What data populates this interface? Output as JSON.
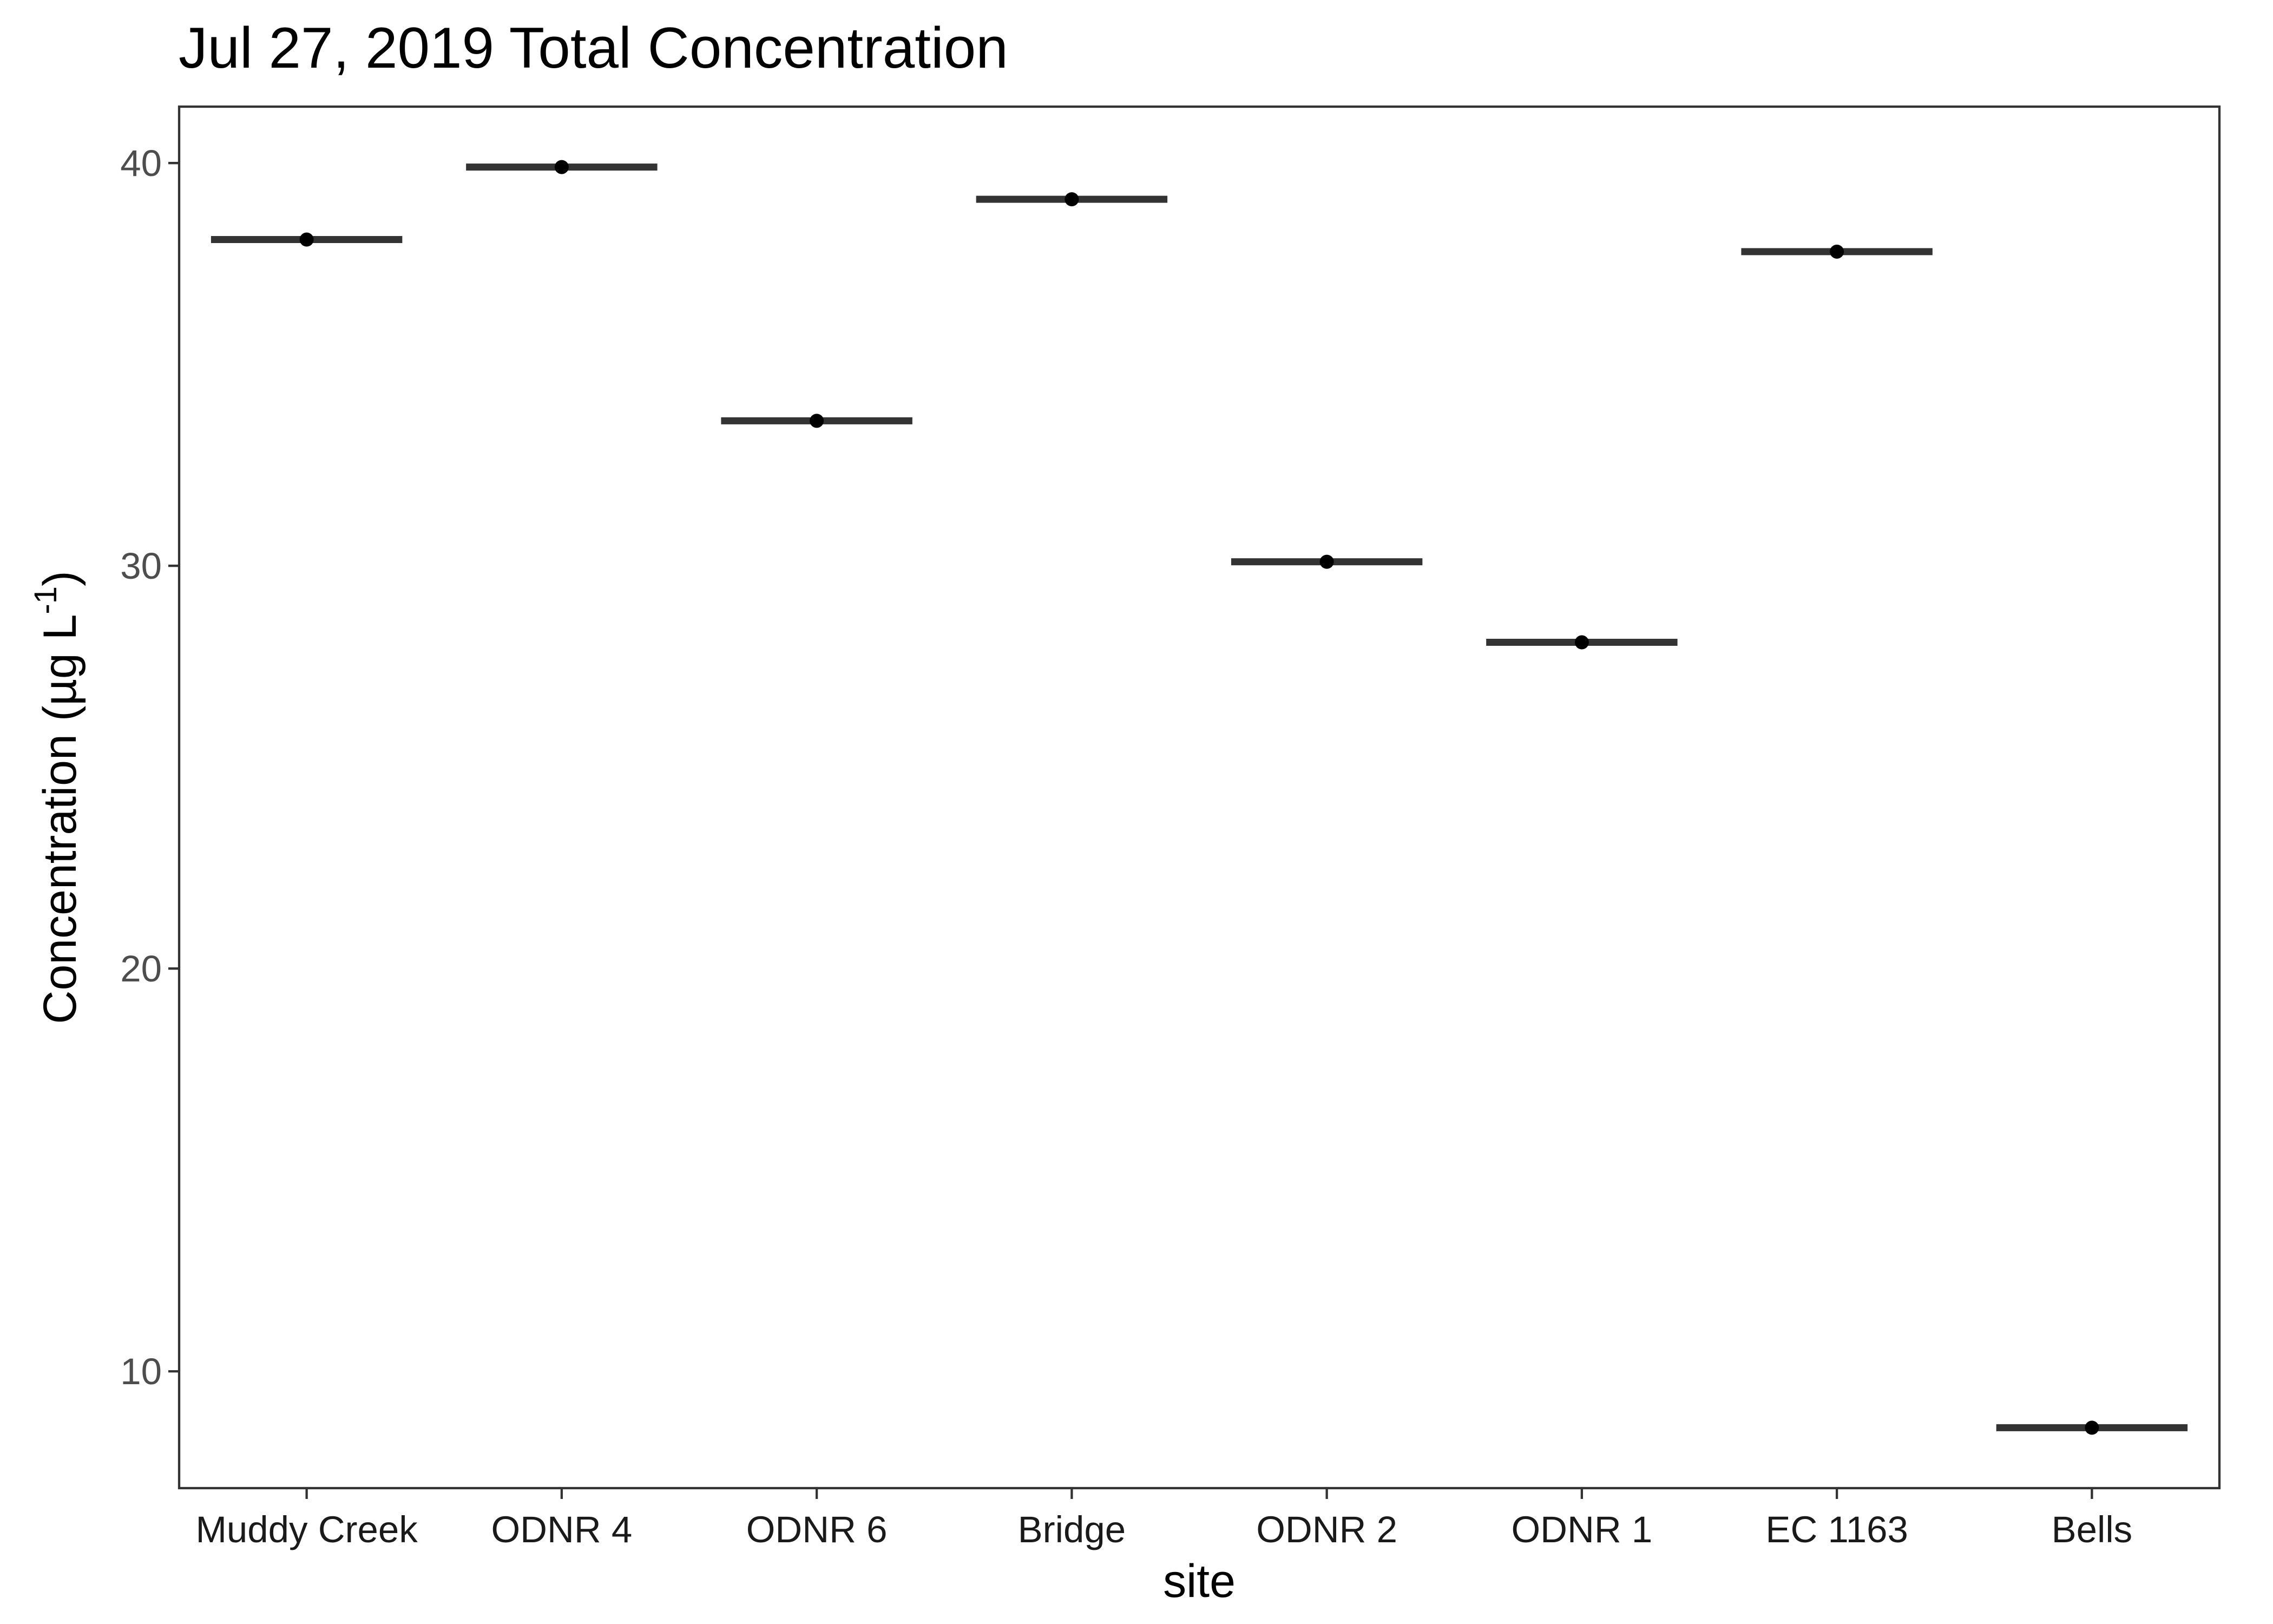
{
  "chart_data": {
    "type": "crossbar",
    "title": "Jul 27, 2019 Total Concentration",
    "xlabel": "site",
    "ylabel": {
      "main": "Concentration (µg L",
      "superscript": "-1",
      "close": ")"
    },
    "categories": [
      "Muddy Creek",
      "ODNR 4",
      "ODNR 6",
      "Bridge",
      "ODNR 2",
      "ODNR 1",
      "EC 1163",
      "Bells"
    ],
    "values": [
      38.1,
      39.9,
      33.6,
      39.1,
      30.1,
      28.1,
      37.8,
      8.6
    ],
    "ylim": [
      7.1,
      41.4
    ],
    "yticks": [
      10,
      20,
      30,
      40
    ],
    "grid": false,
    "legend": "none",
    "colors": {
      "crossbar": "#333333",
      "point": "#000000",
      "panel_border": "#333333",
      "tick_label": "#4d4d4d"
    }
  }
}
